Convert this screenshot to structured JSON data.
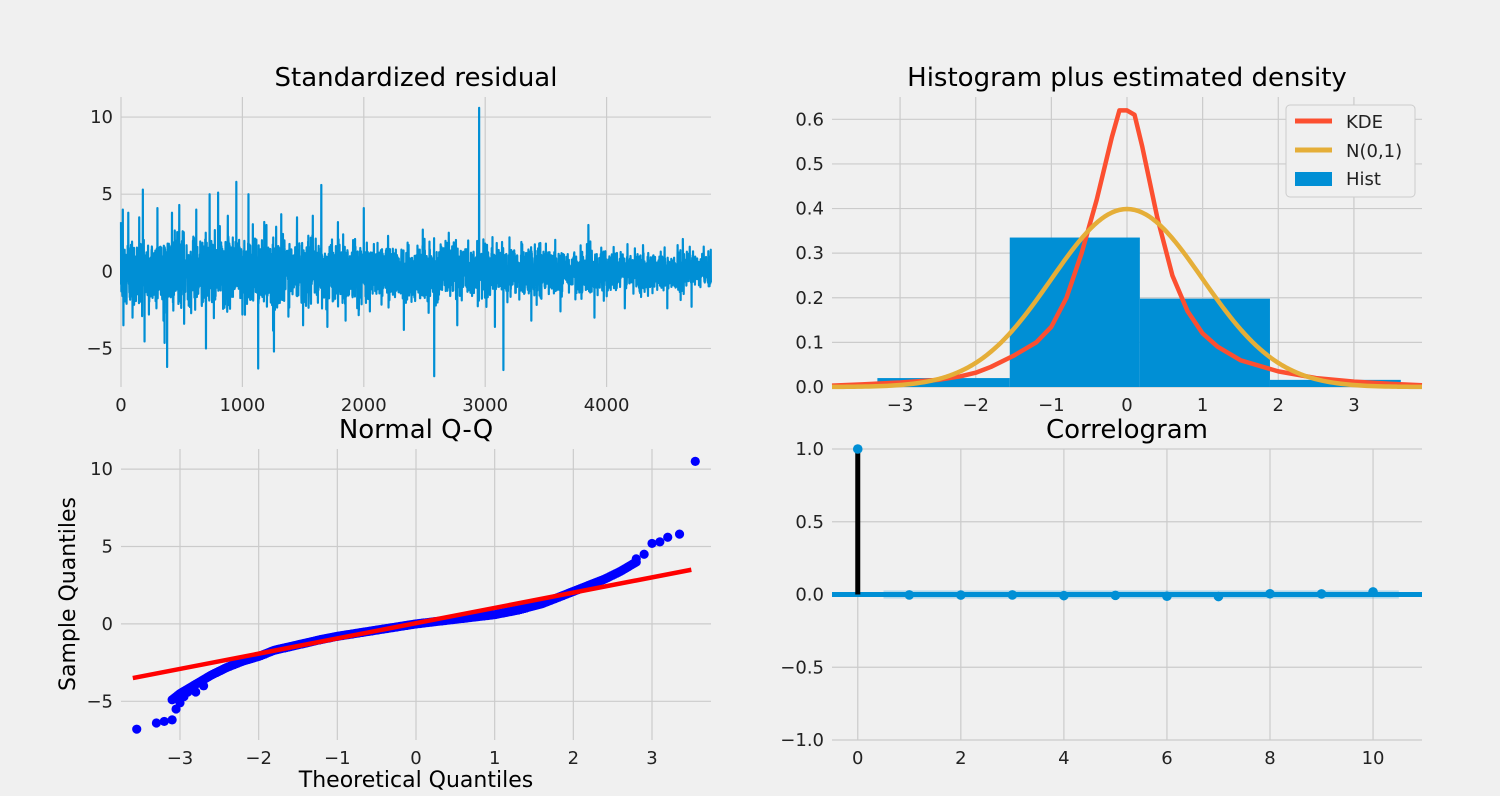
{
  "colors": {
    "background": "#f0f0f0",
    "grid": "#cbcbcb",
    "blue": "#008fd5",
    "red": "#fc4f30",
    "orange": "#e5ae38",
    "qq_points": "#0000ff",
    "qq_line": "#ff0000",
    "stem": "#000000"
  },
  "chart_data": [
    {
      "id": "residual",
      "type": "line",
      "title": "Standardized residual",
      "xlabel": "",
      "ylabel": "",
      "xlim": [
        0,
        4860
      ],
      "ylim": [
        -7.5,
        11.3
      ],
      "xticks": [
        0,
        1000,
        2000,
        3000,
        4000
      ],
      "xtick_labels": [
        "0",
        "1000",
        "2000",
        "3000",
        "4000"
      ],
      "yticks": [
        -5,
        0,
        5,
        10
      ],
      "ytick_labels": [
        "−5",
        "0",
        "5",
        "10"
      ],
      "grid": true,
      "n_points": 4860,
      "spikes": [
        {
          "x": 15,
          "y": 4.0
        },
        {
          "x": 20,
          "y": -3.5
        },
        {
          "x": 60,
          "y": 3.8
        },
        {
          "x": 95,
          "y": -3.0
        },
        {
          "x": 150,
          "y": 3.5
        },
        {
          "x": 180,
          "y": 5.3
        },
        {
          "x": 230,
          "y": -2.8
        },
        {
          "x": 300,
          "y": 4.1
        },
        {
          "x": 350,
          "y": -3.2
        },
        {
          "x": 380,
          "y": -6.2
        },
        {
          "x": 420,
          "y": 3.8
        },
        {
          "x": 480,
          "y": 4.3
        },
        {
          "x": 520,
          "y": -3.4
        },
        {
          "x": 620,
          "y": 4.0
        },
        {
          "x": 700,
          "y": -5.0
        },
        {
          "x": 730,
          "y": 5.0
        },
        {
          "x": 800,
          "y": 5.1
        },
        {
          "x": 880,
          "y": 3.6
        },
        {
          "x": 950,
          "y": 5.8
        },
        {
          "x": 1000,
          "y": -2.8
        },
        {
          "x": 1050,
          "y": 5.0
        },
        {
          "x": 1130,
          "y": -6.3
        },
        {
          "x": 1180,
          "y": 3.2
        },
        {
          "x": 1260,
          "y": -5.2
        },
        {
          "x": 1320,
          "y": 3.7
        },
        {
          "x": 1450,
          "y": 3.5
        },
        {
          "x": 1500,
          "y": -3.5
        },
        {
          "x": 1580,
          "y": 3.6
        },
        {
          "x": 1650,
          "y": 5.6
        },
        {
          "x": 1700,
          "y": -3.6
        },
        {
          "x": 1830,
          "y": 2.4
        },
        {
          "x": 1850,
          "y": -3.2
        },
        {
          "x": 2000,
          "y": 4.1
        },
        {
          "x": 2050,
          "y": -2.6
        },
        {
          "x": 2200,
          "y": 2.3
        },
        {
          "x": 2330,
          "y": -3.8
        },
        {
          "x": 2500,
          "y": 2.1
        },
        {
          "x": 2580,
          "y": -6.8
        },
        {
          "x": 2700,
          "y": 2.5
        },
        {
          "x": 2770,
          "y": -3.5
        },
        {
          "x": 2860,
          "y": 2.0
        },
        {
          "x": 2950,
          "y": 10.6
        },
        {
          "x": 3080,
          "y": -3.6
        },
        {
          "x": 3150,
          "y": -6.4
        },
        {
          "x": 3200,
          "y": 2.2
        },
        {
          "x": 3380,
          "y": -3.2
        },
        {
          "x": 3500,
          "y": 1.8
        },
        {
          "x": 3620,
          "y": -2.6
        },
        {
          "x": 3850,
          "y": 3.0
        },
        {
          "x": 3900,
          "y": -3.0
        },
        {
          "x": 4150,
          "y": -2.4
        },
        {
          "x": 4300,
          "y": 1.7
        },
        {
          "x": 4500,
          "y": -2.4
        },
        {
          "x": 4700,
          "y": -2.3
        },
        {
          "x": 4800,
          "y": 1.6
        }
      ]
    },
    {
      "id": "histogram",
      "type": "bar",
      "title": "Histogram plus estimated density",
      "xlabel": "",
      "ylabel": "",
      "xlim": [
        -3.9,
        3.9
      ],
      "ylim": [
        0,
        0.65
      ],
      "xticks": [
        -3,
        -2,
        -1,
        0,
        1,
        2,
        3
      ],
      "xtick_labels": [
        "−3",
        "−2",
        "−1",
        "0",
        "1",
        "2",
        "3"
      ],
      "yticks": [
        0,
        0.1,
        0.2,
        0.3,
        0.4,
        0.5,
        0.6
      ],
      "ytick_labels": [
        "0.0",
        "0.1",
        "0.2",
        "0.3",
        "0.4",
        "0.5",
        "0.6"
      ],
      "grid": true,
      "legend_placement": "top-right",
      "legend": [
        "KDE",
        "N(0,1)",
        "Hist"
      ],
      "bins": [
        {
          "x0": -3.3,
          "x1": -1.55,
          "value": 0.02
        },
        {
          "x0": -1.55,
          "x1": 0.17,
          "value": 0.335
        },
        {
          "x0": 0.17,
          "x1": 1.89,
          "value": 0.198
        },
        {
          "x0": 1.89,
          "x1": 3.62,
          "value": 0.016
        }
      ],
      "kde": {
        "x": [
          -3.9,
          -3.5,
          -3.0,
          -2.5,
          -2.2,
          -2.0,
          -1.8,
          -1.5,
          -1.2,
          -1.0,
          -0.8,
          -0.6,
          -0.4,
          -0.2,
          -0.1,
          0.0,
          0.1,
          0.2,
          0.4,
          0.6,
          0.8,
          1.0,
          1.2,
          1.5,
          2.0,
          2.5,
          3.0,
          3.5,
          3.9
        ],
        "y": [
          0.003,
          0.006,
          0.01,
          0.016,
          0.024,
          0.032,
          0.045,
          0.07,
          0.1,
          0.135,
          0.2,
          0.3,
          0.42,
          0.56,
          0.62,
          0.62,
          0.61,
          0.54,
          0.38,
          0.25,
          0.17,
          0.12,
          0.09,
          0.06,
          0.035,
          0.02,
          0.012,
          0.007,
          0.004
        ]
      },
      "normal": {
        "mean": 0,
        "sd": 1
      }
    },
    {
      "id": "qq",
      "type": "scatter",
      "title": "Normal Q-Q",
      "xlabel": "Theoretical Quantiles",
      "ylabel": "Sample Quantiles",
      "xlim": [
        -3.75,
        3.75
      ],
      "ylim": [
        -7.5,
        11.3
      ],
      "xticks": [
        -3,
        -2,
        -1,
        0,
        1,
        2,
        3
      ],
      "xtick_labels": [
        "−3",
        "−2",
        "−1",
        "0",
        "1",
        "2",
        "3"
      ],
      "yticks": [
        -5,
        0,
        5,
        10
      ],
      "ytick_labels": [
        "−5",
        "0",
        "5",
        "10"
      ],
      "grid": true,
      "reference_line": {
        "x": [
          -3.6,
          3.5
        ],
        "y": [
          -3.5,
          3.5
        ]
      },
      "curve_x": [
        -3.1,
        -3.0,
        -2.8,
        -2.6,
        -2.4,
        -2.2,
        -2.0,
        -1.8,
        -1.5,
        -1.2,
        -1.0,
        -0.5,
        0.0,
        0.5,
        1.0,
        1.3,
        1.6,
        1.8,
        2.0,
        2.2,
        2.4,
        2.6,
        2.8
      ],
      "curve_y": [
        -4.9,
        -4.5,
        -3.9,
        -3.3,
        -2.8,
        -2.4,
        -2.1,
        -1.7,
        -1.35,
        -1.0,
        -0.8,
        -0.4,
        0.0,
        0.3,
        0.6,
        0.9,
        1.3,
        1.7,
        2.1,
        2.5,
        2.9,
        3.4,
        4.0
      ],
      "extreme_points": [
        {
          "x": -3.55,
          "y": -6.8
        },
        {
          "x": -3.3,
          "y": -6.4
        },
        {
          "x": -3.2,
          "y": -6.3
        },
        {
          "x": -3.1,
          "y": -6.2
        },
        {
          "x": -3.05,
          "y": -5.5
        },
        {
          "x": -3.0,
          "y": -5.1
        },
        {
          "x": -2.95,
          "y": -4.7
        },
        {
          "x": -2.9,
          "y": -4.4
        },
        {
          "x": -2.8,
          "y": -4.4
        },
        {
          "x": -2.7,
          "y": -4.0
        },
        {
          "x": 2.8,
          "y": 4.2
        },
        {
          "x": 2.9,
          "y": 4.5
        },
        {
          "x": 3.0,
          "y": 5.2
        },
        {
          "x": 3.1,
          "y": 5.3
        },
        {
          "x": 3.2,
          "y": 5.6
        },
        {
          "x": 3.35,
          "y": 5.8
        },
        {
          "x": 3.55,
          "y": 10.5
        }
      ]
    },
    {
      "id": "correlogram",
      "type": "bar",
      "title": "Correlogram",
      "xlabel": "",
      "ylabel": "",
      "xlim": [
        -0.5,
        10.95
      ],
      "ylim": [
        -1.0,
        1.0
      ],
      "xticks": [
        0,
        2,
        4,
        6,
        8,
        10
      ],
      "xtick_labels": [
        "0",
        "2",
        "4",
        "6",
        "8",
        "10"
      ],
      "yticks": [
        -1.0,
        -0.5,
        0.0,
        0.5,
        1.0
      ],
      "ytick_labels": [
        "−1.0",
        "−0.5",
        "0.0",
        "0.5",
        "1.0"
      ],
      "grid": true,
      "lags": [
        0,
        1,
        2,
        3,
        4,
        5,
        6,
        7,
        8,
        9,
        10
      ],
      "values": [
        1.0,
        -0.003,
        -0.004,
        -0.003,
        -0.008,
        -0.006,
        -0.012,
        -0.014,
        0.005,
        0.004,
        0.018
      ],
      "confidence_band": 0.028
    }
  ]
}
